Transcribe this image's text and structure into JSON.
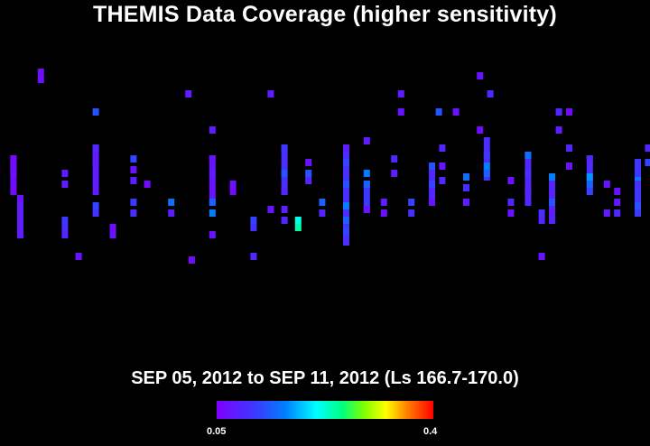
{
  "title": "THEMIS Data Coverage (higher sensitivity)",
  "subtitle": "SEP 05, 2012 to SEP 11, 2012 (Ls 166.7-170.0)",
  "colorbar": {
    "min_label": "0.05",
    "max_label": "0.4",
    "min": 0.05,
    "max": 0.4
  },
  "chart_data": {
    "type": "heatmap",
    "title": "THEMIS Data Coverage (higher sensitivity)",
    "subtitle": "SEP 05, 2012 to SEP 11, 2012 (Ls 166.7-170.0)",
    "value_range": [
      0.05,
      0.4
    ],
    "grid": false,
    "cells": [
      {
        "x": 3,
        "y": 43,
        "v": 0.06
      },
      {
        "x": 3,
        "y": 45,
        "v": 0.06
      },
      {
        "x": 3,
        "y": 47,
        "v": 0.07
      },
      {
        "x": 5,
        "y": 54,
        "v": 0.07
      },
      {
        "x": 5,
        "y": 56,
        "v": 0.08
      },
      {
        "x": 11,
        "y": 19,
        "v": 0.06
      },
      {
        "x": 11,
        "y": 21,
        "v": 0.07
      },
      {
        "x": 18,
        "y": 47,
        "v": 0.08
      },
      {
        "x": 18,
        "y": 50,
        "v": 0.08
      },
      {
        "x": 18,
        "y": 60,
        "v": 0.11
      },
      {
        "x": 18,
        "y": 62,
        "v": 0.1
      },
      {
        "x": 18,
        "y": 64,
        "v": 0.09
      },
      {
        "x": 22,
        "y": 70,
        "v": 0.07
      },
      {
        "x": 27,
        "y": 30,
        "v": 0.13
      },
      {
        "x": 27,
        "y": 40,
        "v": 0.09
      },
      {
        "x": 27,
        "y": 43,
        "v": 0.08
      },
      {
        "x": 27,
        "y": 56,
        "v": 0.12
      },
      {
        "x": 27,
        "y": 58,
        "v": 0.1
      },
      {
        "x": 32,
        "y": 62,
        "v": 0.06
      },
      {
        "x": 32,
        "y": 64,
        "v": 0.07
      },
      {
        "x": 38,
        "y": 43,
        "v": 0.12
      },
      {
        "x": 38,
        "y": 46,
        "v": 0.07
      },
      {
        "x": 38,
        "y": 49,
        "v": 0.08
      },
      {
        "x": 38,
        "y": 55,
        "v": 0.11
      },
      {
        "x": 38,
        "y": 58,
        "v": 0.1
      },
      {
        "x": 42,
        "y": 50,
        "v": 0.06
      },
      {
        "x": 49,
        "y": 55,
        "v": 0.15
      },
      {
        "x": 49,
        "y": 58,
        "v": 0.08
      },
      {
        "x": 54,
        "y": 25,
        "v": 0.08
      },
      {
        "x": 55,
        "y": 71,
        "v": 0.06
      },
      {
        "x": 61,
        "y": 64,
        "v": 0.07
      },
      {
        "x": 61,
        "y": 35,
        "v": 0.08
      },
      {
        "x": 61,
        "y": 43,
        "v": 0.07
      },
      {
        "x": 61,
        "y": 47,
        "v": 0.08
      },
      {
        "x": 61,
        "y": 55,
        "v": 0.14
      },
      {
        "x": 61,
        "y": 58,
        "v": 0.16
      },
      {
        "x": 67,
        "y": 50,
        "v": 0.07
      },
      {
        "x": 67,
        "y": 52,
        "v": 0.06
      },
      {
        "x": 73,
        "y": 70,
        "v": 0.09
      },
      {
        "x": 73,
        "y": 60,
        "v": 0.12
      },
      {
        "x": 73,
        "y": 62,
        "v": 0.1
      },
      {
        "x": 78,
        "y": 25,
        "v": 0.08
      },
      {
        "x": 78,
        "y": 57,
        "v": 0.07
      },
      {
        "x": 82,
        "y": 40,
        "v": 0.11
      },
      {
        "x": 82,
        "y": 47,
        "v": 0.13
      },
      {
        "x": 82,
        "y": 52,
        "v": 0.09
      },
      {
        "x": 82,
        "y": 57,
        "v": 0.08
      },
      {
        "x": 82,
        "y": 60,
        "v": 0.09
      },
      {
        "x": 86,
        "y": 60,
        "v": 0.22
      },
      {
        "x": 86,
        "y": 62,
        "v": 0.24
      },
      {
        "x": 89,
        "y": 44,
        "v": 0.07
      },
      {
        "x": 89,
        "y": 47,
        "v": 0.13
      },
      {
        "x": 89,
        "y": 49,
        "v": 0.09
      },
      {
        "x": 93,
        "y": 55,
        "v": 0.14
      },
      {
        "x": 93,
        "y": 58,
        "v": 0.09
      },
      {
        "x": 100,
        "y": 40,
        "v": 0.08
      },
      {
        "x": 100,
        "y": 44,
        "v": 0.12
      },
      {
        "x": 100,
        "y": 50,
        "v": 0.13
      },
      {
        "x": 100,
        "y": 56,
        "v": 0.16
      },
      {
        "x": 100,
        "y": 60,
        "v": 0.14
      },
      {
        "x": 100,
        "y": 63,
        "v": 0.12
      },
      {
        "x": 106,
        "y": 38,
        "v": 0.08
      },
      {
        "x": 106,
        "y": 47,
        "v": 0.16
      },
      {
        "x": 106,
        "y": 50,
        "v": 0.14
      },
      {
        "x": 106,
        "y": 57,
        "v": 0.07
      },
      {
        "x": 111,
        "y": 55,
        "v": 0.08
      },
      {
        "x": 111,
        "y": 58,
        "v": 0.07
      },
      {
        "x": 114,
        "y": 43,
        "v": 0.09
      },
      {
        "x": 114,
        "y": 47,
        "v": 0.08
      },
      {
        "x": 116,
        "y": 25,
        "v": 0.08
      },
      {
        "x": 116,
        "y": 30,
        "v": 0.07
      },
      {
        "x": 119,
        "y": 55,
        "v": 0.12
      },
      {
        "x": 119,
        "y": 58,
        "v": 0.1
      },
      {
        "x": 125,
        "y": 45,
        "v": 0.13
      },
      {
        "x": 125,
        "y": 50,
        "v": 0.12
      },
      {
        "x": 125,
        "y": 55,
        "v": 0.07
      },
      {
        "x": 127,
        "y": 30,
        "v": 0.13
      },
      {
        "x": 128,
        "y": 40,
        "v": 0.09
      },
      {
        "x": 128,
        "y": 45,
        "v": 0.07
      },
      {
        "x": 128,
        "y": 49,
        "v": 0.09
      },
      {
        "x": 132,
        "y": 30,
        "v": 0.07
      },
      {
        "x": 135,
        "y": 48,
        "v": 0.15
      },
      {
        "x": 135,
        "y": 51,
        "v": 0.1
      },
      {
        "x": 135,
        "y": 55,
        "v": 0.08
      },
      {
        "x": 139,
        "y": 20,
        "v": 0.07
      },
      {
        "x": 139,
        "y": 35,
        "v": 0.06
      },
      {
        "x": 141,
        "y": 42,
        "v": 0.11
      },
      {
        "x": 141,
        "y": 45,
        "v": 0.16
      },
      {
        "x": 141,
        "y": 47,
        "v": 0.14
      },
      {
        "x": 142,
        "y": 25,
        "v": 0.09
      },
      {
        "x": 148,
        "y": 49,
        "v": 0.07
      },
      {
        "x": 148,
        "y": 55,
        "v": 0.09
      },
      {
        "x": 148,
        "y": 58,
        "v": 0.07
      },
      {
        "x": 153,
        "y": 42,
        "v": 0.15
      },
      {
        "x": 153,
        "y": 47,
        "v": 0.1
      },
      {
        "x": 153,
        "y": 52,
        "v": 0.09
      },
      {
        "x": 157,
        "y": 70,
        "v": 0.07
      },
      {
        "x": 157,
        "y": 58,
        "v": 0.1
      },
      {
        "x": 157,
        "y": 60,
        "v": 0.09
      },
      {
        "x": 160,
        "y": 48,
        "v": 0.16
      },
      {
        "x": 160,
        "y": 55,
        "v": 0.13
      },
      {
        "x": 160,
        "y": 58,
        "v": 0.08
      },
      {
        "x": 162,
        "y": 30,
        "v": 0.09
      },
      {
        "x": 162,
        "y": 35,
        "v": 0.08
      },
      {
        "x": 165,
        "y": 30,
        "v": 0.06
      },
      {
        "x": 165,
        "y": 40,
        "v": 0.09
      },
      {
        "x": 165,
        "y": 45,
        "v": 0.07
      },
      {
        "x": 171,
        "y": 43,
        "v": 0.09
      },
      {
        "x": 171,
        "y": 48,
        "v": 0.17
      },
      {
        "x": 171,
        "y": 50,
        "v": 0.14
      },
      {
        "x": 171,
        "y": 52,
        "v": 0.12
      },
      {
        "x": 176,
        "y": 50,
        "v": 0.07
      },
      {
        "x": 176,
        "y": 58,
        "v": 0.08
      },
      {
        "x": 179,
        "y": 52,
        "v": 0.07
      },
      {
        "x": 179,
        "y": 55,
        "v": 0.08
      },
      {
        "x": 179,
        "y": 58,
        "v": 0.09
      },
      {
        "x": 185,
        "y": 44,
        "v": 0.11
      },
      {
        "x": 185,
        "y": 49,
        "v": 0.16
      },
      {
        "x": 185,
        "y": 50,
        "v": 0.1
      },
      {
        "x": 185,
        "y": 56,
        "v": 0.13
      },
      {
        "x": 188,
        "y": 40,
        "v": 0.09
      },
      {
        "x": 188,
        "y": 44,
        "v": 0.12
      }
    ],
    "spans": [
      {
        "x": 3,
        "y0": 43,
        "y1": 52,
        "v": 0.06
      },
      {
        "x": 5,
        "y0": 54,
        "y1": 64,
        "v": 0.08
      },
      {
        "x": 27,
        "y0": 40,
        "y1": 52,
        "v": 0.08
      },
      {
        "x": 61,
        "y0": 43,
        "y1": 55,
        "v": 0.07
      },
      {
        "x": 82,
        "y0": 40,
        "y1": 52,
        "v": 0.1
      },
      {
        "x": 100,
        "y0": 40,
        "y1": 66,
        "v": 0.1
      },
      {
        "x": 106,
        "y0": 50,
        "y1": 57,
        "v": 0.11
      },
      {
        "x": 125,
        "y0": 45,
        "y1": 55,
        "v": 0.09
      },
      {
        "x": 141,
        "y0": 38,
        "y1": 48,
        "v": 0.1
      },
      {
        "x": 153,
        "y0": 42,
        "y1": 55,
        "v": 0.09
      },
      {
        "x": 160,
        "y0": 48,
        "y1": 60,
        "v": 0.09
      },
      {
        "x": 171,
        "y0": 43,
        "y1": 52,
        "v": 0.1
      },
      {
        "x": 185,
        "y0": 44,
        "y1": 58,
        "v": 0.11
      }
    ]
  }
}
